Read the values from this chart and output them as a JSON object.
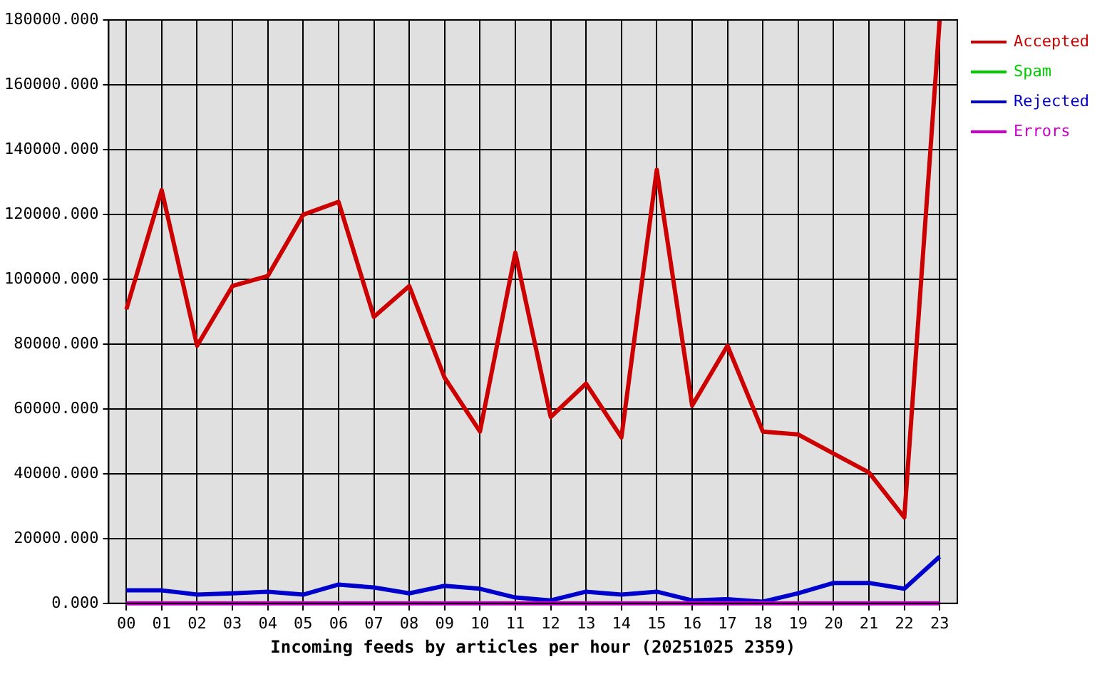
{
  "chart_data": {
    "type": "line",
    "xlabel": "Incoming feeds by articles per hour (20251025 2359)",
    "categories": [
      "00",
      "01",
      "02",
      "03",
      "04",
      "05",
      "06",
      "07",
      "08",
      "09",
      "10",
      "11",
      "12",
      "13",
      "14",
      "15",
      "16",
      "17",
      "18",
      "19",
      "20",
      "21",
      "22",
      "23"
    ],
    "series": [
      {
        "name": "Accepted",
        "color": "#cc0000",
        "values": [
          90700,
          127500,
          79500,
          97900,
          101000,
          119900,
          123900,
          88400,
          97900,
          69600,
          53000,
          108200,
          57500,
          67800,
          51200,
          133800,
          61000,
          79500,
          53000,
          52100,
          46200,
          40400,
          26500,
          180000
        ]
      },
      {
        "name": "Spam",
        "color": "#00cc00",
        "values": [
          null,
          null,
          null,
          null,
          null,
          null,
          null,
          null,
          null,
          null,
          null,
          null,
          null,
          null,
          null,
          null,
          null,
          null,
          null,
          null,
          null,
          null,
          null,
          null
        ]
      },
      {
        "name": "Rejected",
        "color": "#0000cc",
        "values": [
          4000,
          4000,
          2700,
          3100,
          3600,
          2700,
          5800,
          4900,
          3100,
          5400,
          4500,
          1800,
          900,
          3600,
          2700,
          3600,
          900,
          1300,
          500,
          3100,
          6300,
          6300,
          4500,
          14400
        ]
      },
      {
        "name": "Errors",
        "color": "#cc00cc",
        "values": [
          0,
          0,
          0,
          0,
          0,
          0,
          0,
          0,
          0,
          0,
          0,
          0,
          0,
          0,
          0,
          0,
          0,
          0,
          0,
          0,
          0,
          0,
          0,
          0
        ]
      }
    ],
    "ylim": [
      0,
      180000
    ],
    "yticks": [
      {
        "value": 0,
        "label": "0.000"
      },
      {
        "value": 20000,
        "label": "20000.000"
      },
      {
        "value": 40000,
        "label": "40000.000"
      },
      {
        "value": 60000,
        "label": "60000.000"
      },
      {
        "value": 80000,
        "label": "80000.000"
      },
      {
        "value": 100000,
        "label": "100000.000"
      },
      {
        "value": 120000,
        "label": "120000.000"
      },
      {
        "value": 140000,
        "label": "140000.000"
      },
      {
        "value": 160000,
        "label": "160000.000"
      },
      {
        "value": 180000,
        "label": "180000.000"
      }
    ],
    "grid": true,
    "legend": "top right",
    "marker": "none",
    "line_style": "solid"
  }
}
